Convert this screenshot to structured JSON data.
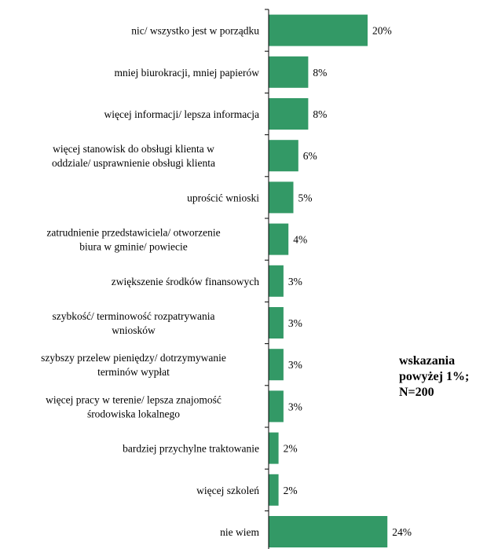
{
  "chart_data": {
    "type": "bar",
    "orientation": "horizontal",
    "categories": [
      "nic/ wszystko jest w porządku",
      "mniej biurokracji, mniej papierów",
      "więcej informacji/ lepsza informacja",
      "więcej stanowisk do obsługi klienta w\noddziale/ usprawnienie obsługi klienta",
      "uprościć wnioski",
      "zatrudnienie przedstawiciela/ otworzenie\nbiura w gminie/ powiecie",
      "zwiększenie środków finansowych",
      "szybkość/ terminowość rozpatrywania\nwniosków",
      "szybszy przelew pieniędzy/ dotrzymywanie\nterminów wypłat",
      "więcej pracy w terenie/ lepsza znajomość\nśrodowiska lokalnego",
      "bardziej przychylne traktowanie",
      "więcej szkoleń",
      "nie wiem"
    ],
    "values": [
      20,
      8,
      8,
      6,
      5,
      4,
      3,
      3,
      3,
      3,
      2,
      2,
      24
    ],
    "value_labels": [
      "20%",
      "8%",
      "8%",
      "6%",
      "5%",
      "4%",
      "3%",
      "3%",
      "3%",
      "3%",
      "2%",
      "2%",
      "24%"
    ],
    "xlim": [
      0,
      24
    ],
    "grid": false,
    "bar_color": "#339966"
  },
  "note": {
    "lines": [
      "wskazania",
      "powyżej 1%;",
      "N=200"
    ]
  }
}
